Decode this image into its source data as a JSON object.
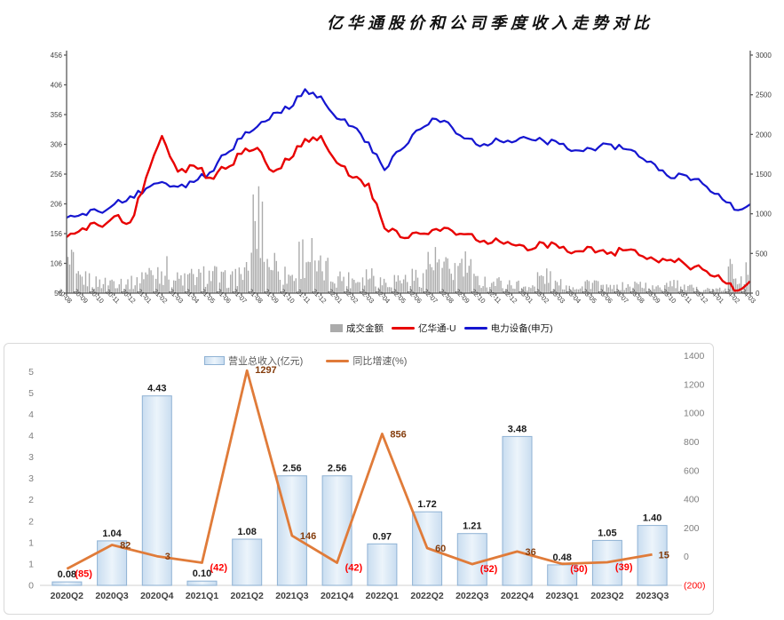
{
  "page": {
    "title": "亿华通股价和公司季度收入走势对比"
  },
  "colors": {
    "volume": "#ABABAB",
    "stock_line": "#E80000",
    "index_line": "#1515D0",
    "axis_line": "#595959",
    "axis_text": "#3f3f3f",
    "gray_text": "#7F7F7F",
    "orange_line": "#E07B39",
    "label_positive": "#843C0C",
    "label_negative": "#FF0000",
    "bar_border": "#8FB2D4",
    "bar_fill_edge": "#C9DDF0",
    "bar_fill_center": "#ECF4FB",
    "baseline": "#D9D9D9",
    "bar_value_text": "#1a1a1a"
  },
  "chart_data": [
    {
      "type": "line",
      "title": "亿华通股价和公司季度收入走势对比",
      "x": [
        "20-08",
        "20-09",
        "20-10",
        "20-11",
        "20-12",
        "21-01",
        "21-02",
        "21-03",
        "21-04",
        "21-05",
        "21-06",
        "21-07",
        "21-08",
        "21-09",
        "21-10",
        "21-11",
        "21-12",
        "22-01",
        "22-02",
        "22-03",
        "22-04",
        "22-05",
        "22-06",
        "22-07",
        "22-08",
        "22-09",
        "22-10",
        "22-11",
        "22-12",
        "23-01",
        "23-02",
        "23-03",
        "23-04",
        "23-05",
        "23-06",
        "23-07",
        "23-08",
        "23-09",
        "23-10",
        "23-11",
        "23-12",
        "24-01",
        "24-02",
        "24-03"
      ],
      "series": [
        {
          "name": "成交金额",
          "type": "bar",
          "axis": "right",
          "values": [
            555,
            290,
            220,
            255,
            220,
            405,
            480,
            290,
            330,
            370,
            290,
            405,
            1455,
            630,
            370,
            780,
            480,
            330,
            290,
            405,
            255,
            290,
            330,
            630,
            480,
            555,
            255,
            220,
            180,
            140,
            330,
            180,
            140,
            220,
            110,
            140,
            180,
            110,
            255,
            110,
            80,
            70,
            480,
            405
          ]
        },
        {
          "name": "亿华通-U",
          "type": "line",
          "axis": "left",
          "values": [
            150,
            165,
            170,
            185,
            175,
            250,
            320,
            260,
            270,
            250,
            265,
            290,
            300,
            260,
            280,
            315,
            320,
            275,
            250,
            240,
            165,
            150,
            158,
            162,
            165,
            155,
            142,
            148,
            138,
            128,
            140,
            132,
            126,
            133,
            122,
            128,
            120,
            112,
            112,
            102,
            96,
            86,
            60,
            76
          ]
        },
        {
          "name": "电力设备(申万)",
          "type": "line",
          "axis": "right",
          "values": [
            950,
            1000,
            1030,
            1120,
            1220,
            1320,
            1400,
            1340,
            1400,
            1520,
            1750,
            1950,
            2100,
            2270,
            2320,
            2570,
            2480,
            2200,
            2100,
            1900,
            1550,
            1800,
            2050,
            2200,
            2150,
            1950,
            1850,
            1950,
            1900,
            1950,
            1920,
            1880,
            1800,
            1820,
            1880,
            1820,
            1720,
            1620,
            1450,
            1480,
            1380,
            1250,
            1050,
            1120
          ]
        }
      ],
      "left_axis": {
        "min": 56,
        "max": 456,
        "ticks": [
          456,
          406,
          356,
          306,
          256,
          206,
          156,
          106,
          56
        ]
      },
      "right_axis": {
        "min": 0,
        "max": 3000,
        "ticks": [
          3000,
          2500,
          2000,
          1500,
          1000,
          500,
          0
        ]
      },
      "legend_position": "bottom"
    },
    {
      "type": "bar",
      "categories": [
        "2020Q2",
        "2020Q3",
        "2020Q4",
        "2021Q1",
        "2021Q2",
        "2021Q3",
        "2021Q4",
        "2022Q1",
        "2022Q2",
        "2022Q3",
        "2022Q4",
        "2023Q1",
        "2023Q2",
        "2023Q3"
      ],
      "series": [
        {
          "name": "营业总收入(亿元)",
          "type": "bar",
          "values": [
            0.08,
            1.04,
            4.43,
            0.1,
            1.08,
            2.56,
            2.56,
            0.97,
            1.72,
            1.21,
            3.48,
            0.48,
            1.05,
            1.4
          ],
          "labels": [
            "0.08",
            "1.04",
            "4.43",
            "0.10",
            "1.08",
            "2.56",
            "2.56",
            "0.97",
            "1.72",
            "1.21",
            "3.48",
            "0.48",
            "1.05",
            "1.40"
          ]
        },
        {
          "name": "同比增速(%)",
          "type": "line",
          "values": [
            -85,
            82,
            3,
            -42,
            1297,
            146,
            -42,
            856,
            60,
            -52,
            36,
            -50,
            -39,
            15
          ],
          "labels": [
            "(85)",
            "82",
            "3",
            "(42)",
            "1297",
            "146",
            "(42)",
            "856",
            "60",
            "(52)",
            "36",
            "(50)",
            "(39)",
            "15"
          ]
        }
      ],
      "left_axis": {
        "min": 0,
        "max": 5.4,
        "tick_values": [
          5,
          4.5,
          4,
          3.5,
          3,
          2.5,
          2,
          1.5,
          1,
          0.5,
          0
        ],
        "tick_labels": [
          "5",
          "5",
          "4",
          "4",
          "3",
          "3",
          "2",
          "2",
          "1",
          "1",
          "0"
        ]
      },
      "right_axis": {
        "min": -200,
        "max": 1410,
        "tick_values": [
          1400,
          1200,
          1000,
          800,
          600,
          400,
          200,
          0,
          -200
        ],
        "tick_labels": [
          "1400",
          "1200",
          "1000",
          "800",
          "600",
          "400",
          "200",
          "0",
          "(200)"
        ]
      },
      "legend_position": "top"
    }
  ]
}
